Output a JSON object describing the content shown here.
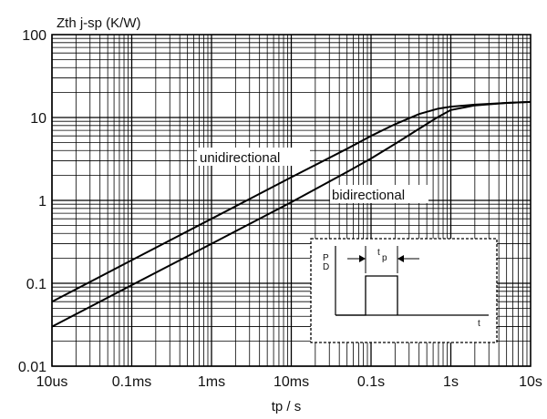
{
  "chart_data": {
    "type": "line",
    "title": "",
    "ylabel": "Zth j-sp  (K/W)",
    "xlabel": "tp / s",
    "x_scale": "log",
    "y_scale": "log",
    "xlim": [
      1e-05,
      10
    ],
    "ylim": [
      0.01,
      100
    ],
    "grid": true,
    "x_ticks": [
      {
        "value": 1e-05,
        "label": "10us"
      },
      {
        "value": 0.0001,
        "label": "0.1ms"
      },
      {
        "value": 0.001,
        "label": "1ms"
      },
      {
        "value": 0.01,
        "label": "10ms"
      },
      {
        "value": 0.1,
        "label": "0.1s"
      },
      {
        "value": 1,
        "label": "1s"
      },
      {
        "value": 10,
        "label": "10s"
      }
    ],
    "y_ticks": [
      {
        "value": 0.01,
        "label": "0.01"
      },
      {
        "value": 0.1,
        "label": "0.1"
      },
      {
        "value": 1,
        "label": "1"
      },
      {
        "value": 10,
        "label": "10"
      },
      {
        "value": 100,
        "label": "100"
      }
    ],
    "series": [
      {
        "name": "unidirectional",
        "x": [
          1e-05,
          0.0001,
          0.001,
          0.01,
          0.05,
          0.1,
          0.2,
          0.4,
          0.7,
          1,
          2,
          5,
          10
        ],
        "y": [
          0.06,
          0.19,
          0.6,
          1.9,
          4.2,
          6.0,
          8.3,
          11.0,
          12.8,
          13.5,
          14.3,
          15.0,
          15.4
        ]
      },
      {
        "name": "bidirectional",
        "x": [
          1e-05,
          0.0001,
          0.001,
          0.01,
          0.05,
          0.1,
          0.2,
          0.4,
          0.7,
          1,
          2,
          5,
          10
        ],
        "y": [
          0.03,
          0.095,
          0.3,
          0.95,
          2.2,
          3.2,
          4.8,
          7.3,
          10.2,
          12.3,
          14.0,
          15.0,
          15.4
        ]
      }
    ],
    "inset": {
      "axis_y_label_top": "P",
      "axis_y_label_bottom": "D",
      "pulse_label_main": "t",
      "pulse_label_sub": "p",
      "axis_x_label": "t"
    }
  }
}
